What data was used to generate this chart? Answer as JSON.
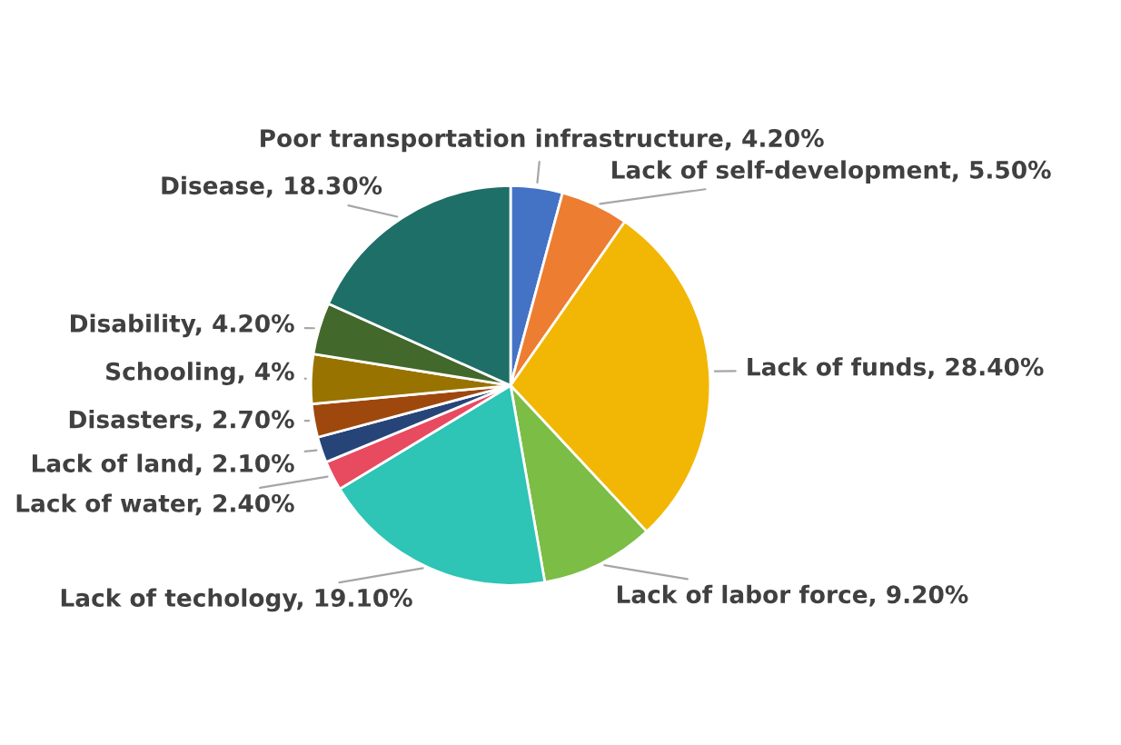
{
  "chart_data": {
    "type": "pie",
    "categories": [
      "Poor transportation infrastructure",
      "Lack of self-development",
      "Lack of funds",
      "Lack of labor force",
      "Lack of techology",
      "Lack of water",
      "Lack of land",
      "Disasters",
      "Schooling",
      "Disability",
      "Disease"
    ],
    "values": [
      4.2,
      5.5,
      28.4,
      9.2,
      19.1,
      2.4,
      2.1,
      2.7,
      4,
      4.2,
      18.3
    ],
    "value_labels": [
      "4.20%",
      "5.50%",
      "28.40%",
      "9.20%",
      "19.10%",
      "2.40%",
      "2.10%",
      "2.70%",
      "4%",
      "4.20%",
      "18.30%"
    ],
    "colors": [
      "#4472c4",
      "#ed7d31",
      "#f2b705",
      "#7cbd45",
      "#2ec4b6",
      "#e84a5f",
      "#264478",
      "#9e480e",
      "#997300",
      "#43682b",
      "#1e6f67"
    ],
    "legend": false
  }
}
